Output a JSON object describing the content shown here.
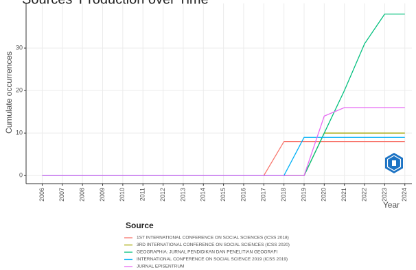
{
  "chart_data": {
    "type": "line",
    "title": "Sources' Production over Time",
    "x_label": "Year",
    "y_label": "Cumulate occurrences",
    "legend_title": "Source",
    "x": [
      2006,
      2007,
      2008,
      2009,
      2010,
      2011,
      2012,
      2013,
      2014,
      2015,
      2016,
      2017,
      2018,
      2019,
      2020,
      2021,
      2022,
      2023,
      2024
    ],
    "series": [
      {
        "name": "1ST INTERNATIONAL CONFERENCE ON SOCIAL SCIENCES (ICSS 2018)",
        "color": "#F8766D",
        "values": [
          0,
          0,
          0,
          0,
          0,
          0,
          0,
          0,
          0,
          0,
          0,
          0,
          8,
          8,
          8,
          8,
          8,
          8,
          8
        ]
      },
      {
        "name": "3RD INTERNATIONAL CONFERENCE ON SOCIAL SCIENCES (ICSS 2020)",
        "color": "#A3A500",
        "values": [
          0,
          0,
          0,
          0,
          0,
          0,
          0,
          0,
          0,
          0,
          0,
          0,
          0,
          0,
          10,
          10,
          10,
          10,
          10
        ]
      },
      {
        "name": "GEOGRAPHIA: JURNAL PENDIDIKAN DAN PENELITIAN GEOGRAFI",
        "color": "#00BF7D",
        "values": [
          0,
          0,
          0,
          0,
          0,
          0,
          0,
          0,
          0,
          0,
          0,
          0,
          0,
          0,
          10,
          20,
          31,
          38,
          38
        ]
      },
      {
        "name": "INTERNATIONAL CONFERENCE ON SOCIAL SCIENCE 2019 (ICSS 2019)",
        "color": "#00B0F6",
        "values": [
          0,
          0,
          0,
          0,
          0,
          0,
          0,
          0,
          0,
          0,
          0,
          0,
          0,
          9,
          9,
          9,
          9,
          9,
          9
        ]
      },
      {
        "name": "JURNAL EPISENTRUM",
        "color": "#E76BF3",
        "values": [
          0,
          0,
          0,
          0,
          0,
          0,
          0,
          0,
          0,
          0,
          0,
          0,
          0,
          0,
          14,
          16,
          16,
          16,
          16
        ]
      }
    ],
    "xlim": [
      2005.2,
      2024.35
    ],
    "xticks": [
      2006,
      2007,
      2008,
      2009,
      2010,
      2011,
      2012,
      2013,
      2014,
      2015,
      2016,
      2017,
      2018,
      2019,
      2020,
      2021,
      2022,
      2023,
      2024
    ],
    "ylim": [
      -1.9,
      40.5
    ],
    "yticks": [
      0,
      10,
      20,
      30
    ],
    "grid": true,
    "legend_position": "bottom"
  }
}
